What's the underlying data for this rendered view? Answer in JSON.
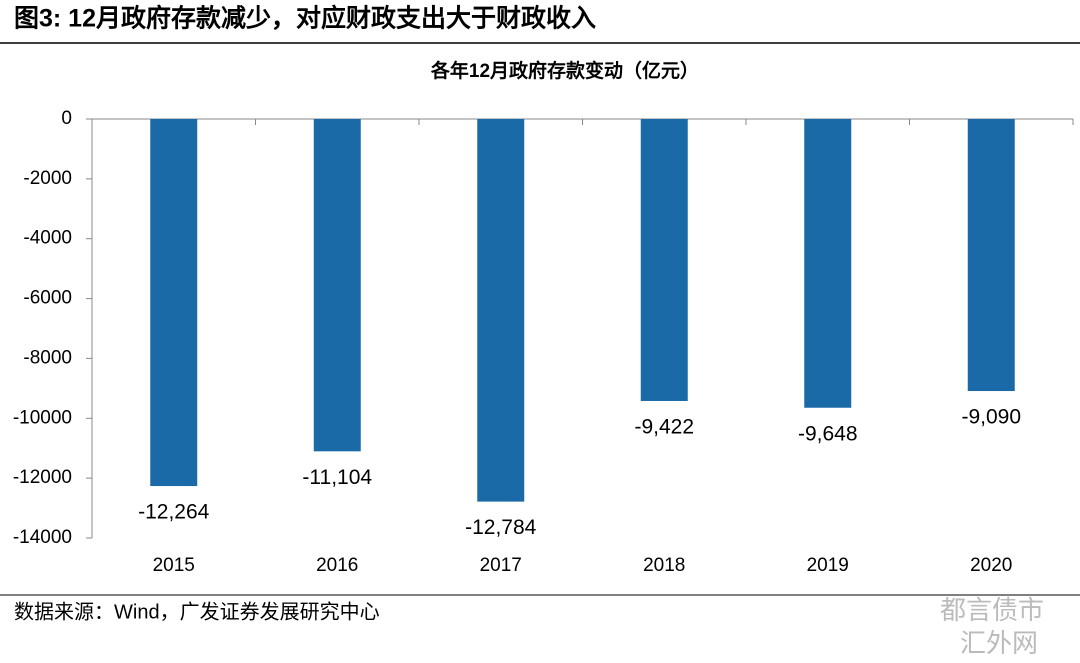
{
  "figure_title": "图3:  12月政府存款减少，对应财政支出大于财政收入",
  "source": "数据来源：Wind，广发证券发展研究中心",
  "watermarks": [
    "都言债市",
    "汇外网"
  ],
  "chart_data": {
    "type": "bar",
    "title": "各年12月政府存款变动（亿元）",
    "categories": [
      "2015",
      "2016",
      "2017",
      "2018",
      "2019",
      "2020"
    ],
    "values": [
      -12264,
      -11104,
      -12784,
      -9422,
      -9648,
      -9090
    ],
    "value_labels": [
      "-12,264",
      "-11,104",
      "-12,784",
      "-9,422",
      "-9,648",
      "-9,090"
    ],
    "color": "#1b6aa8",
    "ylim": [
      -14000,
      0
    ],
    "yticks": [
      0,
      -2000,
      -4000,
      -6000,
      -8000,
      -10000,
      -12000,
      -14000
    ],
    "grid": false
  }
}
